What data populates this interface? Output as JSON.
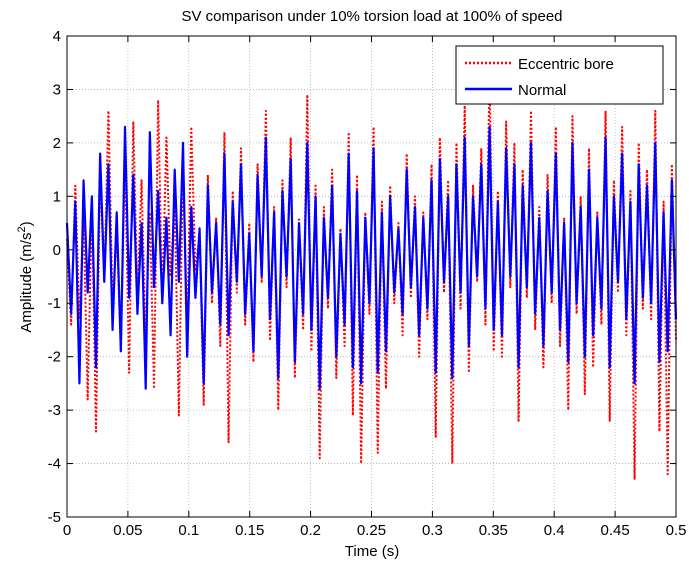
{
  "chart_data": {
    "type": "line",
    "title": "SV comparison under 10% torsion load at 100% of speed",
    "xlabel": "Time (s)",
    "ylabel_main": "Amplitude (m/s",
    "ylabel_sup": "2",
    "ylabel_close": ")",
    "xlim": [
      0,
      0.5
    ],
    "ylim": [
      -5,
      4
    ],
    "xticks": [
      0,
      0.05,
      0.1,
      0.15,
      0.2,
      0.25,
      0.3,
      0.35,
      0.4,
      0.45,
      0.5
    ],
    "xtick_labels": [
      "0",
      "0.05",
      "0.1",
      "0.15",
      "0.2",
      "0.25",
      "0.3",
      "0.35",
      "0.4",
      "0.45",
      "0.5"
    ],
    "yticks": [
      -5,
      -4,
      -3,
      -2,
      -1,
      0,
      1,
      2,
      3,
      4
    ],
    "ytick_labels": [
      "-5",
      "-4",
      "-3",
      "-2",
      "-1",
      "0",
      "1",
      "2",
      "3",
      "4"
    ],
    "grid": true,
    "legend_position": "top-right",
    "series": [
      {
        "name": "Eccentric bore",
        "color": "#ff0000",
        "style": "dotted",
        "values": [
          0.2,
          -1.4,
          1.2,
          -1.3,
          0.6,
          -2.8,
          0.9,
          -3.4,
          1.5,
          -0.6,
          2.6,
          -1.1,
          0.4,
          -1.9,
          1.8,
          -2.3,
          2.4,
          -0.9,
          1.3,
          -1.7,
          0.7,
          -2.6,
          2.8,
          -1.0,
          2.1,
          -0.5,
          0.9,
          -3.1,
          1.7,
          -1.5,
          2.3,
          -0.4,
          0.3,
          -2.9,
          1.4,
          -1.0,
          0.6,
          -1.8,
          2.2,
          -3.6,
          1.1,
          -0.8,
          1.9,
          -1.4,
          0.5,
          -2.1,
          1.6,
          -0.6,
          2.6,
          -1.7,
          0.8,
          -3.0,
          1.3,
          -0.7,
          2.1,
          -2.4,
          0.6,
          -1.5,
          2.9,
          -1.9,
          1.2,
          -3.9,
          0.8,
          -1.1,
          1.5,
          -2.4,
          0.4,
          -1.8,
          2.2,
          -3.1,
          1.4,
          -4.0,
          0.7,
          -1.2,
          2.3,
          -3.8,
          0.9,
          -2.6,
          1.2,
          -1.0,
          0.5,
          -1.6,
          1.8,
          -0.9,
          1.0,
          -2.0,
          0.7,
          -1.3,
          1.6,
          -3.5,
          2.1,
          -0.8,
          1.3,
          -4.0,
          2.0,
          -1.1,
          2.7,
          -2.3,
          1.2,
          -0.6,
          1.9,
          -1.4,
          3.35,
          -1.9,
          1.1,
          -2.0,
          2.4,
          -0.7,
          2.0,
          -3.2,
          1.5,
          -0.9,
          2.6,
          -1.5,
          0.8,
          -2.2,
          1.4,
          -1.0,
          2.3,
          -1.8,
          0.6,
          -3.0,
          2.5,
          -1.2,
          1.0,
          -2.7,
          1.9,
          -2.2,
          0.7,
          -1.4,
          2.6,
          -3.2,
          1.3,
          -0.8,
          2.3,
          -1.6,
          1.1,
          -4.3,
          2.0,
          -1.1,
          1.5,
          -1.3,
          2.6,
          -3.4,
          0.9,
          -4.2,
          1.6,
          -1.7
        ]
      },
      {
        "name": "Normal",
        "color": "#0000ff",
        "style": "solid",
        "values": [
          0.5,
          -1.2,
          0.9,
          -2.5,
          1.3,
          -0.8,
          1.0,
          -2.2,
          1.8,
          -0.6,
          1.6,
          -1.5,
          0.7,
          -1.9,
          2.3,
          -0.9,
          1.4,
          -1.2,
          0.5,
          -2.6,
          2.2,
          -0.7,
          1.1,
          -1.0,
          0.6,
          -1.6,
          1.5,
          -0.6,
          2.0,
          -2.0,
          0.8,
          -0.9,
          0.4,
          -2.5,
          1.2,
          -0.8,
          0.5,
          -1.4,
          1.8,
          -1.6,
          0.9,
          -0.6,
          1.6,
          -1.2,
          0.3,
          -1.9,
          1.4,
          -0.5,
          2.1,
          -1.3,
          0.7,
          -2.4,
          1.1,
          -0.5,
          1.7,
          -2.1,
          0.5,
          -1.2,
          2.0,
          -1.5,
          1.0,
          -2.6,
          0.6,
          -0.9,
          1.2,
          -2.0,
          0.3,
          -1.4,
          1.8,
          -2.2,
          1.1,
          -2.5,
          0.6,
          -1.0,
          1.9,
          -2.3,
          0.7,
          -1.9,
          1.0,
          -0.8,
          0.4,
          -1.2,
          1.5,
          -0.7,
          0.8,
          -1.6,
          0.6,
          -1.1,
          1.3,
          -2.3,
          1.7,
          -0.6,
          1.0,
          -2.4,
          1.6,
          -0.8,
          2.1,
          -1.8,
          1.0,
          -0.5,
          1.6,
          -1.1,
          2.3,
          -1.5,
          0.9,
          -1.6,
          1.9,
          -0.5,
          1.6,
          -2.2,
          1.2,
          -0.7,
          2.0,
          -1.2,
          0.6,
          -1.8,
          1.1,
          -0.8,
          1.8,
          -1.5,
          0.5,
          -2.1,
          2.0,
          -1.0,
          0.8,
          -2.0,
          1.5,
          -1.6,
          0.6,
          -1.1,
          2.1,
          -2.2,
          1.0,
          -0.6,
          1.8,
          -1.3,
          0.9,
          -2.5,
          1.6,
          -0.9,
          1.2,
          -1.0,
          2.0,
          -2.1,
          0.7,
          -1.9,
          1.3,
          -1.3
        ]
      }
    ]
  }
}
